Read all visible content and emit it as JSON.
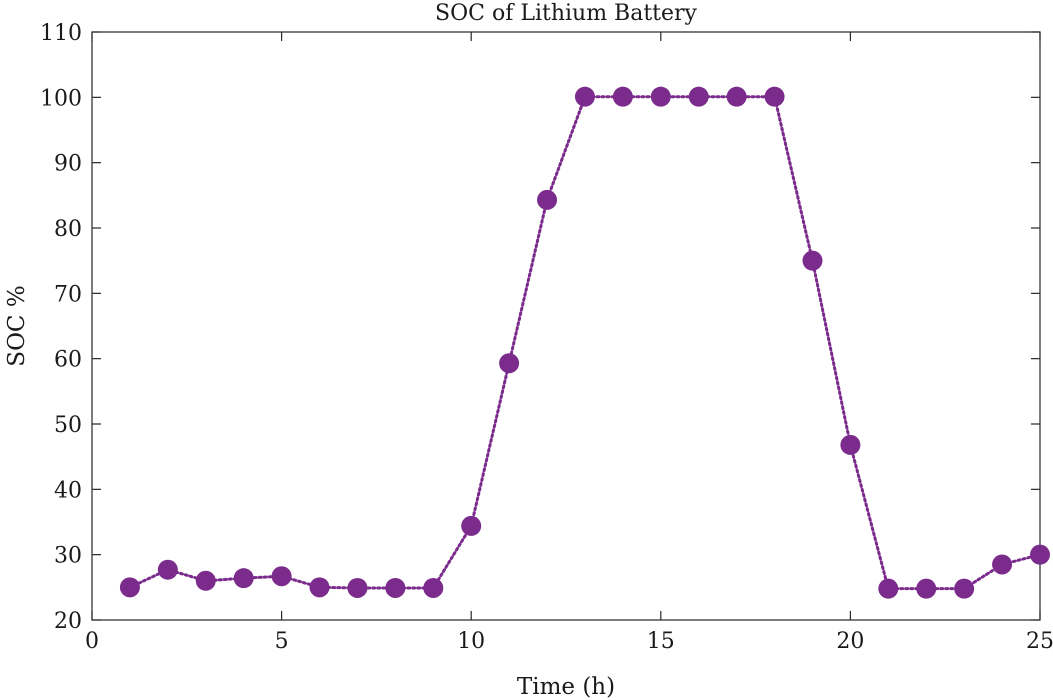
{
  "chart_data": {
    "type": "line",
    "title": "SOC of Lithium Battery",
    "xlabel": "Time (h)",
    "ylabel": "SOC %",
    "xlim": [
      0,
      25
    ],
    "ylim": [
      20,
      110
    ],
    "xticks": [
      0,
      5,
      10,
      15,
      20,
      25
    ],
    "yticks": [
      20,
      30,
      40,
      50,
      60,
      70,
      80,
      90,
      100,
      110
    ],
    "grid": false,
    "legend": "none",
    "line_style": "dotted",
    "marker": "circle",
    "color": "#7B2B8C",
    "series": [
      {
        "x": [
          1,
          2,
          3,
          4,
          5,
          6,
          7,
          8,
          9,
          10,
          11,
          12,
          13,
          14,
          15,
          16,
          17,
          18,
          19,
          20,
          21,
          22,
          23,
          24,
          25
        ],
        "values": [
          25,
          27.7,
          26,
          26.4,
          26.7,
          25,
          24.9,
          24.9,
          24.9,
          34.4,
          59.3,
          84.3,
          100.1,
          100.1,
          100.1,
          100.1,
          100.1,
          100.1,
          75,
          46.8,
          24.8,
          24.8,
          24.8,
          28.5,
          30
        ]
      }
    ]
  }
}
